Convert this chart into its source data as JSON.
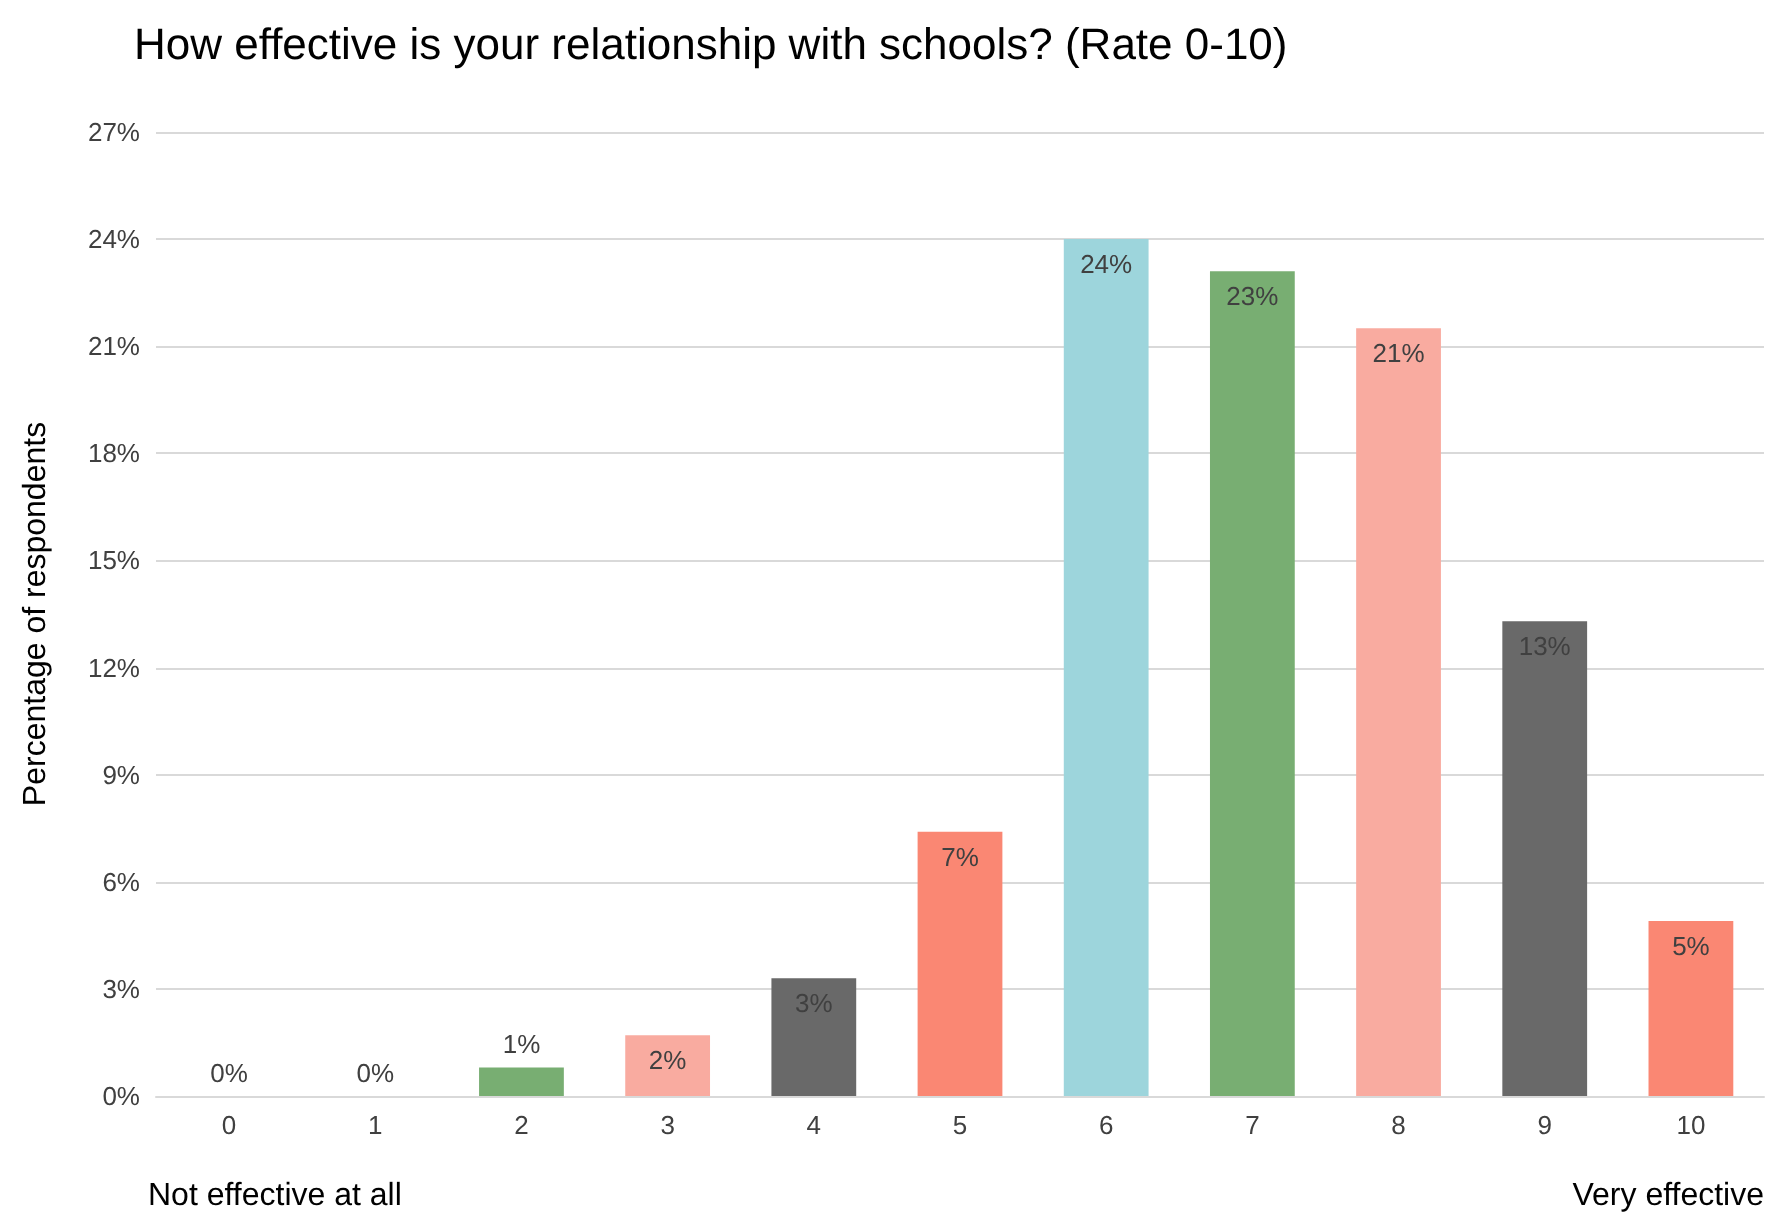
{
  "chart_data": {
    "type": "bar",
    "title": "How effective is your relationship with schools? (Rate 0-10)",
    "ylabel": "Percentage of respondents",
    "categories": [
      "0",
      "1",
      "2",
      "3",
      "4",
      "5",
      "6",
      "7",
      "8",
      "9",
      "10"
    ],
    "values": [
      0,
      0,
      0.8,
      1.7,
      3.3,
      7.4,
      24,
      23.1,
      21.5,
      13.3,
      4.9
    ],
    "value_labels": [
      "0%",
      "0%",
      "1%",
      "2%",
      "3%",
      "7%",
      "24%",
      "23%",
      "21%",
      "13%",
      "5%"
    ],
    "colors": [
      "#fa8773",
      "#9dd5dc",
      "#78ae72",
      "#f9aba0",
      "#696969",
      "#fa8773",
      "#9dd5dc",
      "#78ae72",
      "#f9aba0",
      "#696969",
      "#fa8773"
    ],
    "ylim": [
      0,
      27
    ],
    "yticks": [
      {
        "value": 0,
        "label": "0%"
      },
      {
        "value": 3,
        "label": "3%"
      },
      {
        "value": 6,
        "label": "6%"
      },
      {
        "value": 9,
        "label": "9%"
      },
      {
        "value": 12,
        "label": "12%"
      },
      {
        "value": 15,
        "label": "15%"
      },
      {
        "value": 18,
        "label": "18%"
      },
      {
        "value": 21,
        "label": "21%"
      },
      {
        "value": 24,
        "label": "24%"
      },
      {
        "value": 27,
        "label": "27%"
      }
    ],
    "grid": true,
    "annotations": [
      "Not effective at all",
      "Very effective"
    ]
  }
}
